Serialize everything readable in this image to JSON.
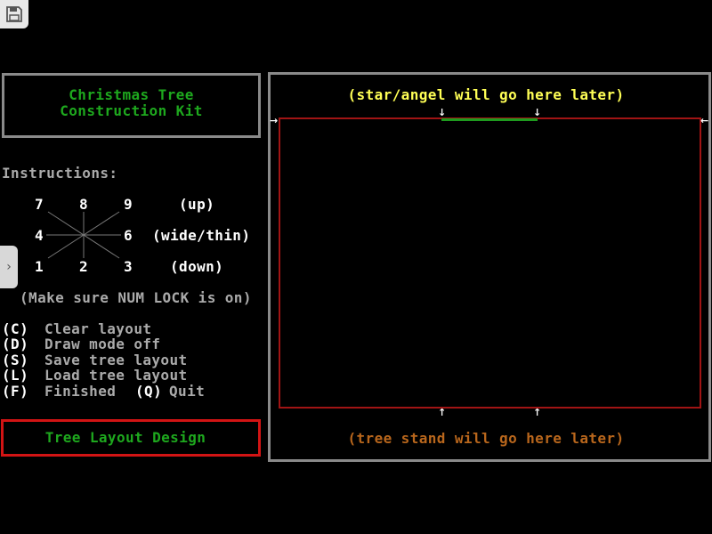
{
  "toolbar": {
    "save_icon": "floppy-disk-icon",
    "side_tab_icon": "chevron-right-icon"
  },
  "title": {
    "line1": "Christmas Tree",
    "line2": "Construction Kit"
  },
  "instructions": {
    "heading": "Instructions:",
    "keys": {
      "k7": "7",
      "k8": "8",
      "k9": "9",
      "k4": "4",
      "k6": "6",
      "k1": "1",
      "k2": "2",
      "k3": "3"
    },
    "up": "(up)",
    "wide_thin": "(wide/thin)",
    "down": "(down)",
    "numlock": "(Make sure NUM LOCK is on)"
  },
  "menu": [
    {
      "key": "(C)",
      "label": "Clear layout"
    },
    {
      "key": "(D)",
      "label": "Draw mode off"
    },
    {
      "key": "(S)",
      "label": "Save tree layout"
    },
    {
      "key": "(L)",
      "label": "Load tree layout"
    },
    {
      "key": "(F)",
      "label": "Finished",
      "key2": "(Q)",
      "label2": "Quit"
    }
  ],
  "mode": "Tree Layout Design",
  "canvas": {
    "top_text": "(star/angel will go here later)",
    "bottom_text": "(tree stand will go here later)"
  },
  "colors": {
    "title": "#1ea81e",
    "top_text": "#ffff55",
    "bottom_text": "#b8661c",
    "layout_border": "#a01414",
    "mode_border": "#d21414"
  }
}
